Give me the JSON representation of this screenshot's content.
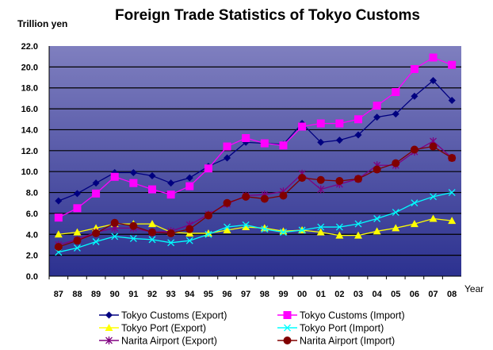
{
  "chart_data": {
    "type": "line",
    "title": "Foreign Trade Statistics of  Tokyo Customs",
    "ylabel": "Trillion yen",
    "xlabel": "Year",
    "ylim": [
      0,
      22
    ],
    "yticks": [
      "0.0",
      "2.0",
      "4.0",
      "6.0",
      "8.0",
      "10.0",
      "12.0",
      "14.0",
      "16.0",
      "18.0",
      "20.0",
      "22.0"
    ],
    "grid": true,
    "legend_position": "bottom",
    "categories": [
      "87",
      "88",
      "89",
      "90",
      "91",
      "92",
      "93",
      "94",
      "95",
      "96",
      "97",
      "98",
      "99",
      "00",
      "01",
      "02",
      "03",
      "04",
      "05",
      "06",
      "07",
      "08"
    ],
    "series": [
      {
        "name": "Tokyo Customs (Export)",
        "color": "#000080",
        "marker": "diamond",
        "values": [
          7.2,
          7.9,
          8.9,
          9.9,
          9.9,
          9.6,
          8.9,
          9.4,
          10.5,
          11.3,
          12.8,
          12.7,
          12.6,
          14.6,
          12.8,
          13.0,
          13.5,
          15.2,
          15.5,
          17.2,
          18.7,
          16.8
        ]
      },
      {
        "name": "Tokyo Customs (Import)",
        "color": "#FF00FF",
        "marker": "square",
        "values": [
          5.6,
          6.5,
          7.9,
          9.5,
          8.9,
          8.3,
          7.8,
          8.6,
          10.3,
          12.4,
          13.2,
          12.7,
          12.5,
          14.3,
          14.6,
          14.6,
          15.0,
          16.3,
          17.6,
          19.8,
          20.9,
          20.2
        ]
      },
      {
        "name": "Tokyo Port (Export)",
        "color": "#FFFF00",
        "marker": "triangle",
        "values": [
          4.0,
          4.2,
          4.6,
          5.0,
          5.0,
          5.0,
          4.2,
          4.1,
          4.1,
          4.4,
          4.7,
          4.6,
          4.3,
          4.4,
          4.2,
          3.9,
          3.9,
          4.3,
          4.6,
          5.0,
          5.5,
          5.3
        ]
      },
      {
        "name": "Tokyo Port (Import)",
        "color": "#00FFFF",
        "marker": "x",
        "values": [
          2.3,
          2.7,
          3.3,
          3.8,
          3.6,
          3.5,
          3.2,
          3.4,
          4.0,
          4.7,
          4.9,
          4.5,
          4.2,
          4.4,
          4.7,
          4.7,
          5.0,
          5.5,
          6.1,
          7.0,
          7.6,
          8.0
        ]
      },
      {
        "name": "Narita Airport (Export)",
        "color": "#800080",
        "marker": "star",
        "values": [
          3.0,
          3.5,
          4.2,
          4.6,
          4.6,
          4.2,
          4.3,
          4.9,
          5.9,
          6.9,
          7.7,
          7.8,
          8.1,
          9.8,
          8.3,
          8.8,
          9.3,
          10.6,
          10.6,
          11.9,
          12.9,
          11.3
        ]
      },
      {
        "name": "Narita Airport (Import)",
        "color": "#800000",
        "marker": "circle",
        "values": [
          2.8,
          3.4,
          4.1,
          5.1,
          4.8,
          4.2,
          4.1,
          4.5,
          5.8,
          7.0,
          7.6,
          7.4,
          7.7,
          9.4,
          9.2,
          9.1,
          9.3,
          10.2,
          10.8,
          12.1,
          12.4,
          11.3
        ]
      }
    ]
  }
}
